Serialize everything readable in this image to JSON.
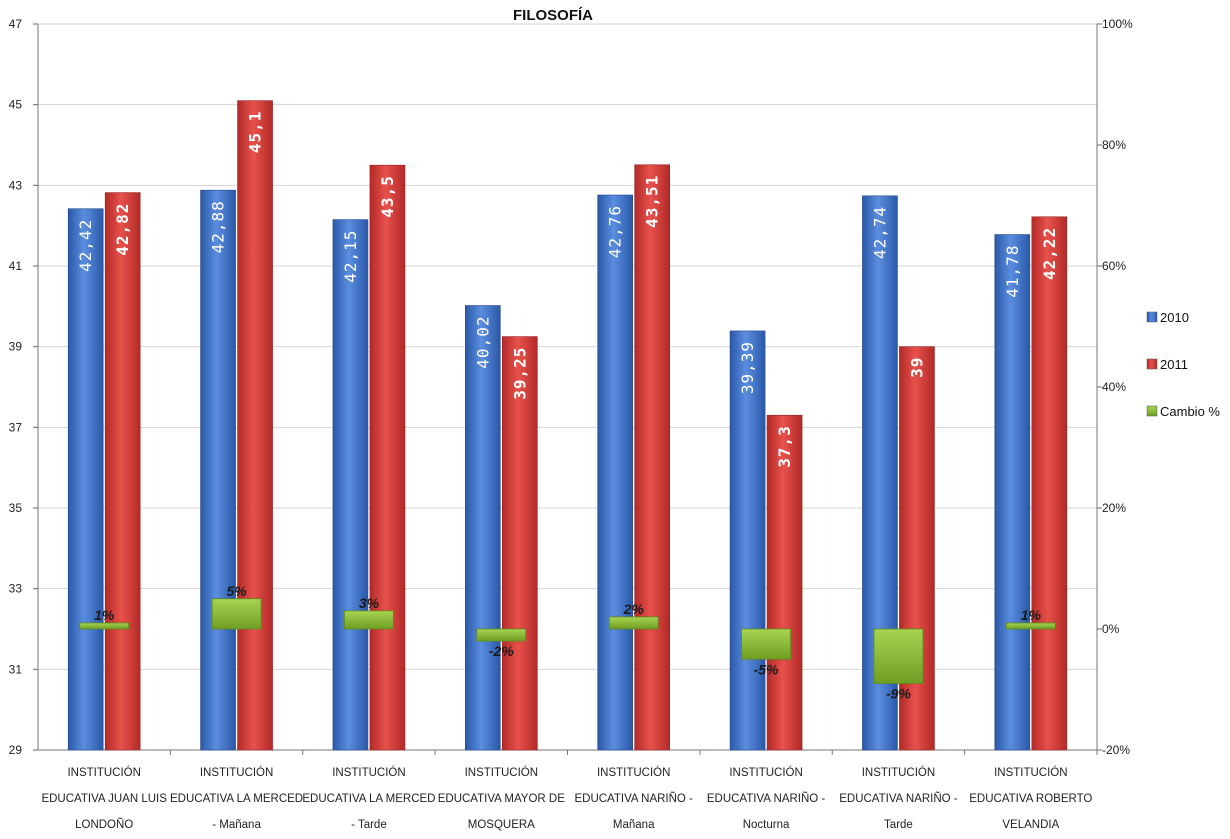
{
  "chart_data": {
    "type": "bar",
    "title": "FILOSOFÍA",
    "categories": [
      [
        "INSTITUCIÓN",
        "EDUCATIVA JUAN LUIS",
        "LONDOÑO"
      ],
      [
        "INSTITUCIÓN",
        "EDUCATIVA LA MERCED",
        "- Mañana"
      ],
      [
        "INSTITUCIÓN",
        "EDUCATIVA LA MERCED",
        "- Tarde"
      ],
      [
        "INSTITUCIÓN",
        "EDUCATIVA MAYOR DE",
        "MOSQUERA"
      ],
      [
        "INSTITUCIÓN",
        "EDUCATIVA NARIÑO -",
        "Mañana"
      ],
      [
        "INSTITUCIÓN",
        "EDUCATIVA NARIÑO -",
        "Nocturna"
      ],
      [
        "INSTITUCIÓN",
        "EDUCATIVA NARIÑO -",
        "Tarde"
      ],
      [
        "INSTITUCIÓN",
        "EDUCATIVA ROBERTO",
        "VELANDIA"
      ]
    ],
    "series": [
      {
        "name": "2010",
        "color": "#3a6fc9",
        "axis": "left",
        "values": [
          42.42,
          42.88,
          42.15,
          40.02,
          42.76,
          39.39,
          42.74,
          41.78
        ],
        "labels": [
          "42,42",
          "42,88",
          "42,15",
          "40,02",
          "42,76",
          "39,39",
          "42,74",
          "41,78"
        ]
      },
      {
        "name": "2011",
        "color": "#d23b37",
        "axis": "left",
        "values": [
          42.82,
          45.1,
          43.5,
          39.25,
          43.51,
          37.3,
          39,
          42.22
        ],
        "labels": [
          "42,82",
          "45,1",
          "43,5",
          "39,25",
          "43,51",
          "37,3",
          "39",
          "42,22"
        ]
      },
      {
        "name": "Cambio %",
        "color": "#8fc13a",
        "axis": "right",
        "values": [
          1,
          5,
          3,
          -2,
          2,
          -5,
          -9,
          1
        ],
        "labels": [
          "1%",
          "5%",
          "3%",
          "-2%",
          "2%",
          "-5%",
          "-9%",
          "1%"
        ]
      }
    ],
    "y_left": {
      "min": 29,
      "max": 47,
      "ticks": [
        "29",
        "31",
        "33",
        "35",
        "37",
        "39",
        "41",
        "43",
        "45",
        "47"
      ]
    },
    "y_right": {
      "min": -20,
      "max": 100,
      "ticks": [
        "-20%",
        "0%",
        "20%",
        "40%",
        "60%",
        "80%",
        "100%"
      ]
    },
    "grid": true,
    "legend_position": "right"
  }
}
